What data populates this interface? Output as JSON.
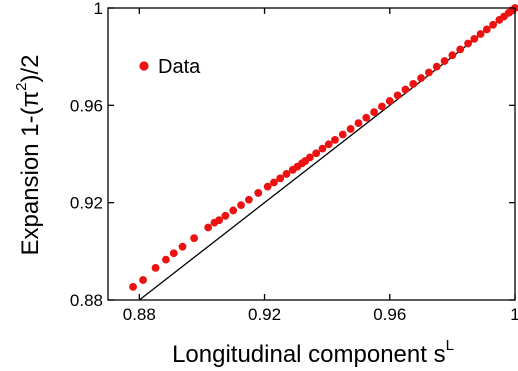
{
  "chart_data": {
    "type": "scatter",
    "xlabel": {
      "text": "Longitudinal component s",
      "superscript": "L"
    },
    "ylabel": {
      "prefix": "Expansion 1-(",
      "symbol": "π",
      "superscript": "2",
      "suffix": ")/2"
    },
    "xlim": [
      0.87,
      1.0
    ],
    "ylim": [
      0.88,
      1.0
    ],
    "x_ticks": [
      0.88,
      0.92,
      0.96,
      1.0
    ],
    "x_tick_labels": [
      "0.88",
      "0.92",
      "0.96",
      "1"
    ],
    "y_ticks": [
      0.88,
      0.92,
      0.96,
      1.0
    ],
    "y_tick_labels": [
      "0.88",
      "0.92",
      "0.96",
      "1"
    ],
    "legend": {
      "position": "top-left",
      "entries": [
        "Data"
      ]
    },
    "grid": false,
    "colors": {
      "marker": "#ee1111",
      "reference_line": "#000000"
    },
    "reference_line": {
      "x": [
        0.88,
        1.0
      ],
      "y": [
        0.88,
        1.0
      ]
    },
    "series": [
      {
        "name": "Data",
        "x": [
          0.878,
          0.8812,
          0.8852,
          0.8885,
          0.891,
          0.8938,
          0.8975,
          0.902,
          0.904,
          0.9055,
          0.9075,
          0.91,
          0.9125,
          0.915,
          0.918,
          0.921,
          0.923,
          0.925,
          0.927,
          0.929,
          0.9305,
          0.932,
          0.933,
          0.9345,
          0.9365,
          0.9385,
          0.9405,
          0.9425,
          0.945,
          0.9475,
          0.95,
          0.9525,
          0.955,
          0.9575,
          0.96,
          0.9625,
          0.965,
          0.9675,
          0.97,
          0.9725,
          0.975,
          0.9775,
          0.98,
          0.9825,
          0.985,
          0.987,
          0.989,
          0.991,
          0.993,
          0.995,
          0.9965,
          0.998,
          0.999,
          1.0
        ],
        "y": [
          0.8854,
          0.8882,
          0.8932,
          0.8966,
          0.8992,
          0.9019,
          0.9054,
          0.9098,
          0.9118,
          0.9128,
          0.9146,
          0.9168,
          0.919,
          0.9212,
          0.924,
          0.9266,
          0.9283,
          0.93,
          0.9318,
          0.9335,
          0.9348,
          0.9362,
          0.9371,
          0.9386,
          0.9403,
          0.9422,
          0.944,
          0.9458,
          0.948,
          0.9503,
          0.9527,
          0.9549,
          0.9572,
          0.9595,
          0.9618,
          0.9641,
          0.9665,
          0.9688,
          0.9712,
          0.9735,
          0.9759,
          0.9782,
          0.9806,
          0.983,
          0.9854,
          0.9873,
          0.9893,
          0.9912,
          0.9931,
          0.9951,
          0.9965,
          0.998,
          0.999,
          1.0
        ]
      }
    ]
  }
}
